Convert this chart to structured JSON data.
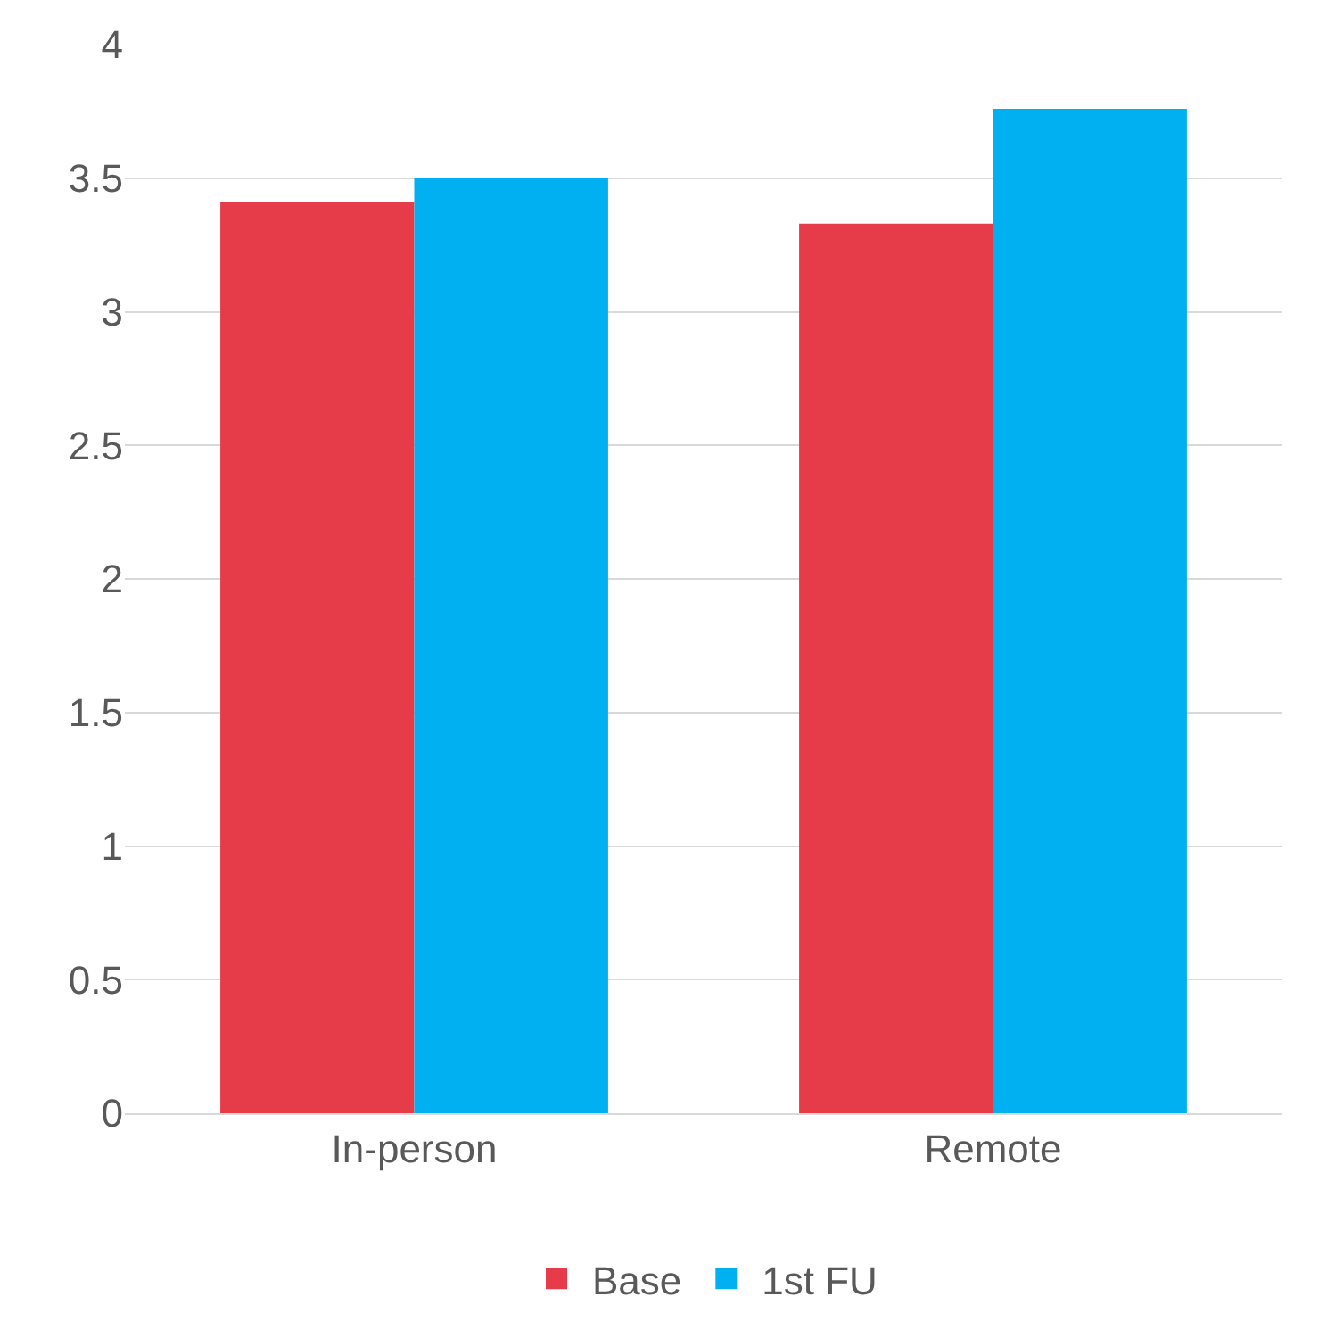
{
  "chart_data": {
    "type": "bar",
    "categories": [
      "In-person",
      "Remote"
    ],
    "series": [
      {
        "name": "Base",
        "color": "#e63c4a",
        "values": [
          3.41,
          3.33
        ]
      },
      {
        "name": "1st FU",
        "color": "#00b0f0",
        "values": [
          3.5,
          3.76
        ]
      }
    ],
    "ylim": [
      0,
      4
    ],
    "yticks": [
      0,
      0.5,
      1,
      1.5,
      2,
      2.5,
      3,
      3.5,
      4
    ],
    "grid": "y",
    "legend": "bottom"
  }
}
